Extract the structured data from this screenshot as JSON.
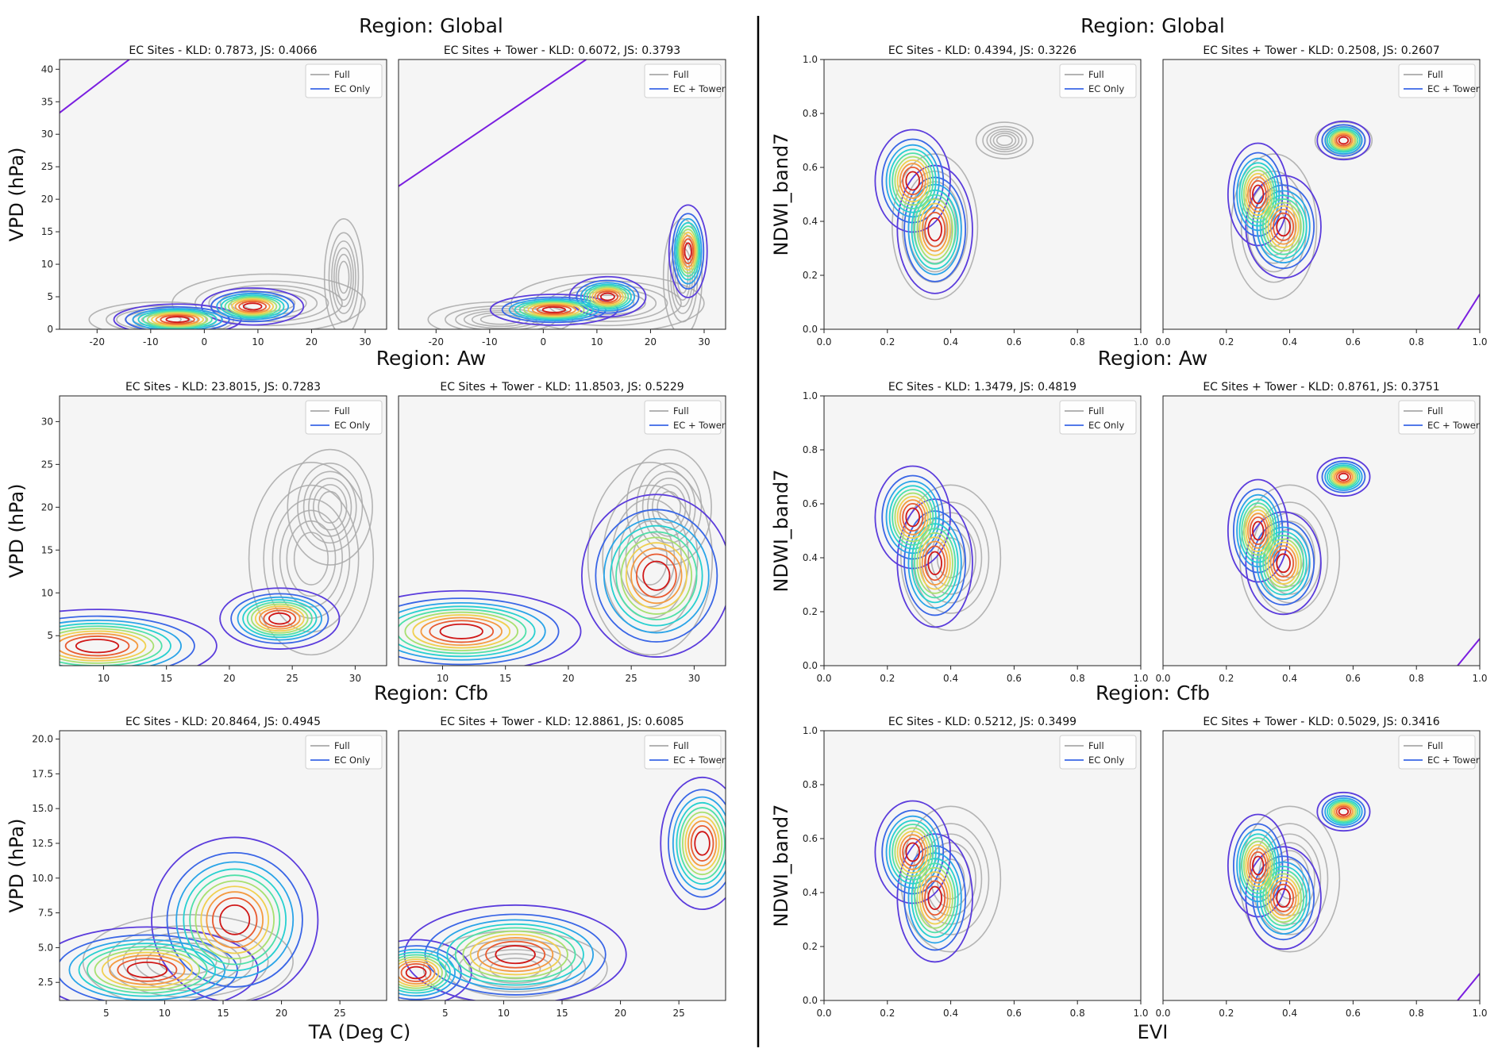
{
  "figure": {
    "left_title": "Region: Global",
    "right_title": "Region: Global"
  },
  "chart_data": [
    {
      "group": "TA-VPD",
      "type": "contour",
      "region_title": "Region: Global",
      "ylabel": "VPD (hPa)",
      "xlabel": "",
      "panels": [
        {
          "title": "EC Sites - KLD: 0.7873, JS: 0.4066",
          "legend": [
            "Full",
            "EC Only"
          ],
          "xlim": [
            -27,
            34
          ],
          "ylim": [
            0,
            41.5
          ],
          "xticks": [
            -20,
            -10,
            0,
            10,
            20,
            30
          ],
          "yticks": [
            0,
            5,
            10,
            15,
            20,
            25,
            30,
            35,
            40
          ],
          "full_peaks": [
            {
              "x": -8,
              "y": 1.5,
              "sx": 6,
              "sy": 1.2
            },
            {
              "x": 26,
              "y": 8,
              "sx": 1.6,
              "sy": 4
            },
            {
              "x": 12,
              "y": 4,
              "sx": 8,
              "sy": 2
            }
          ],
          "sub_peaks": [
            {
              "x": 9,
              "y": 3.5,
              "sx": 4,
              "sy": 1.2
            },
            {
              "x": -5,
              "y": 1.5,
              "sx": 5,
              "sy": 1
            }
          ],
          "diag_line": [
            [
              -27,
              33.3
            ],
            [
              -14,
              41.5
            ]
          ]
        },
        {
          "title": "EC Sites + Tower - KLD: 0.6072, JS: 0.3793",
          "legend": [
            "Full",
            "EC + Tower"
          ],
          "xlim": [
            -27,
            34
          ],
          "ylim": [
            0,
            41.5
          ],
          "xticks": [
            -20,
            -10,
            0,
            10,
            20,
            30
          ],
          "yticks": [],
          "full_peaks": [
            {
              "x": -8,
              "y": 1.5,
              "sx": 6,
              "sy": 1.2
            },
            {
              "x": 26,
              "y": 8,
              "sx": 1.6,
              "sy": 4
            },
            {
              "x": 12,
              "y": 4,
              "sx": 8,
              "sy": 2
            }
          ],
          "sub_peaks": [
            {
              "x": 2,
              "y": 3,
              "sx": 5,
              "sy": 1
            },
            {
              "x": 27,
              "y": 12,
              "sx": 1.5,
              "sy": 3
            },
            {
              "x": 12,
              "y": 5,
              "sx": 3,
              "sy": 1.3
            }
          ],
          "diag_line": [
            [
              -27,
              22
            ],
            [
              8,
              41.5
            ]
          ]
        }
      ]
    },
    {
      "group": "TA-VPD",
      "type": "contour",
      "region_title": "Region: Aw",
      "ylabel": "VPD (hPa)",
      "xlabel": "",
      "panels": [
        {
          "title": "EC Sites - KLD: 23.8015, JS: 0.7283",
          "legend": [
            "Full",
            "EC Only"
          ],
          "xlim": [
            6.5,
            32.5
          ],
          "ylim": [
            1.5,
            33
          ],
          "xticks": [
            10,
            15,
            20,
            25,
            30
          ],
          "yticks": [
            5,
            10,
            15,
            20,
            25,
            30
          ],
          "full_peaks": [
            {
              "x": 26.5,
              "y": 14,
              "sx": 2.2,
              "sy": 5
            },
            {
              "x": 28,
              "y": 20,
              "sx": 1.5,
              "sy": 3
            }
          ],
          "sub_peaks": [
            {
              "x": 9.5,
              "y": 3.8,
              "sx": 4,
              "sy": 1.8
            },
            {
              "x": 24,
              "y": 7,
              "sx": 2,
              "sy": 1.5
            }
          ],
          "diag_line": []
        },
        {
          "title": "EC Sites + Tower - KLD: 11.8503, JS: 0.5229",
          "legend": [
            "Full",
            "EC + Tower"
          ],
          "xlim": [
            6.5,
            32.5
          ],
          "ylim": [
            1.5,
            33
          ],
          "xticks": [
            10,
            15,
            20,
            25,
            30
          ],
          "yticks": [],
          "full_peaks": [
            {
              "x": 26.5,
              "y": 14,
              "sx": 2.2,
              "sy": 5
            },
            {
              "x": 28,
              "y": 20,
              "sx": 1.5,
              "sy": 3
            }
          ],
          "sub_peaks": [
            {
              "x": 11.5,
              "y": 5.5,
              "sx": 4,
              "sy": 2
            },
            {
              "x": 27,
              "y": 12,
              "sx": 2.5,
              "sy": 4
            }
          ],
          "diag_line": []
        }
      ]
    },
    {
      "group": "TA-VPD",
      "type": "contour",
      "region_title": "Region: Cfb",
      "ylabel": "VPD (hPa)",
      "xlabel": "TA (Deg C)",
      "panels": [
        {
          "title": "EC Sites - KLD: 20.8464, JS: 0.4945",
          "legend": [
            "Full",
            "EC Only"
          ],
          "xlim": [
            1,
            29
          ],
          "ylim": [
            1.2,
            20.6
          ],
          "xticks": [
            5,
            10,
            15,
            20,
            25
          ],
          "yticks": [
            2.5,
            5.0,
            7.5,
            10.0,
            12.5,
            15.0,
            17.5,
            20.0
          ],
          "full_peaks": [
            {
              "x": 12,
              "y": 4,
              "sx": 4,
              "sy": 1.5
            }
          ],
          "sub_peaks": [
            {
              "x": 8.5,
              "y": 3.4,
              "sx": 4,
              "sy": 1.3
            },
            {
              "x": 16,
              "y": 7,
              "sx": 3,
              "sy": 2.5
            }
          ],
          "diag_line": []
        },
        {
          "title": "EC Sites + Tower - KLD: 12.8861, JS: 0.6085",
          "legend": [
            "Full",
            "EC + Tower"
          ],
          "xlim": [
            1,
            29
          ],
          "ylim": [
            1.2,
            20.6
          ],
          "xticks": [
            5,
            10,
            15,
            20,
            25
          ],
          "yticks": [],
          "full_peaks": [
            {
              "x": 11,
              "y": 3.5,
              "sx": 3.5,
              "sy": 1.2
            }
          ],
          "sub_peaks": [
            {
              "x": 2.5,
              "y": 3.2,
              "sx": 2,
              "sy": 1
            },
            {
              "x": 11,
              "y": 4.5,
              "sx": 4,
              "sy": 1.5
            },
            {
              "x": 27,
              "y": 12.5,
              "sx": 1.5,
              "sy": 2
            }
          ],
          "diag_line": []
        }
      ]
    },
    {
      "group": "EVI-NDWI",
      "type": "contour",
      "region_title": "Region: Global",
      "ylabel": "NDWI_band7",
      "xlabel": "",
      "panels": [
        {
          "title": "EC Sites - KLD: 0.4394, JS: 0.3226",
          "legend": [
            "Full",
            "EC Only"
          ],
          "xlim": [
            0,
            1
          ],
          "ylim": [
            0,
            1
          ],
          "xticks": [
            0.0,
            0.2,
            0.4,
            0.6,
            0.8,
            1.0
          ],
          "yticks": [
            0.0,
            0.2,
            0.4,
            0.6,
            0.8,
            1.0
          ],
          "full_peaks": [
            {
              "x": 0.35,
              "y": 0.38,
              "sx": 0.06,
              "sy": 0.12
            },
            {
              "x": 0.57,
              "y": 0.7,
              "sx": 0.04,
              "sy": 0.03
            }
          ],
          "sub_peaks": [
            {
              "x": 0.35,
              "y": 0.37,
              "sx": 0.05,
              "sy": 0.1
            },
            {
              "x": 0.28,
              "y": 0.55,
              "sx": 0.05,
              "sy": 0.08
            }
          ],
          "diag_line": []
        },
        {
          "title": "EC Sites + Tower - KLD: 0.2508, JS: 0.2607",
          "legend": [
            "Full",
            "EC + Tower"
          ],
          "xlim": [
            0,
            1
          ],
          "ylim": [
            0,
            1
          ],
          "xticks": [
            0.0,
            0.2,
            0.4,
            0.6,
            0.8,
            1.0
          ],
          "yticks": [],
          "full_peaks": [
            {
              "x": 0.35,
              "y": 0.38,
              "sx": 0.06,
              "sy": 0.12
            },
            {
              "x": 0.57,
              "y": 0.7,
              "sx": 0.04,
              "sy": 0.03
            }
          ],
          "sub_peaks": [
            {
              "x": 0.57,
              "y": 0.7,
              "sx": 0.035,
              "sy": 0.03
            },
            {
              "x": 0.3,
              "y": 0.5,
              "sx": 0.04,
              "sy": 0.08
            },
            {
              "x": 0.38,
              "y": 0.38,
              "sx": 0.05,
              "sy": 0.08
            }
          ],
          "diag_line": [
            [
              0.93,
              0.0
            ],
            [
              1.0,
              0.13
            ]
          ]
        }
      ]
    },
    {
      "group": "EVI-NDWI",
      "type": "contour",
      "region_title": "Region: Aw",
      "ylabel": "NDWI_band7",
      "xlabel": "",
      "panels": [
        {
          "title": "EC Sites - KLD: 1.3479, JS: 0.4819",
          "legend": [
            "Full",
            "EC Only"
          ],
          "xlim": [
            0,
            1
          ],
          "ylim": [
            0,
            1
          ],
          "xticks": [
            0.0,
            0.2,
            0.4,
            0.6,
            0.8,
            1.0
          ],
          "yticks": [
            0.0,
            0.2,
            0.4,
            0.6,
            0.8,
            1.0
          ],
          "full_peaks": [
            {
              "x": 0.4,
              "y": 0.4,
              "sx": 0.07,
              "sy": 0.12
            }
          ],
          "sub_peaks": [
            {
              "x": 0.35,
              "y": 0.38,
              "sx": 0.05,
              "sy": 0.1
            },
            {
              "x": 0.28,
              "y": 0.55,
              "sx": 0.05,
              "sy": 0.08
            }
          ],
          "diag_line": []
        },
        {
          "title": "EC Sites + Tower - KLD: 0.8761, JS: 0.3751",
          "legend": [
            "Full",
            "EC + Tower"
          ],
          "xlim": [
            0,
            1
          ],
          "ylim": [
            0,
            1
          ],
          "xticks": [
            0.0,
            0.2,
            0.4,
            0.6,
            0.8,
            1.0
          ],
          "yticks": [],
          "full_peaks": [
            {
              "x": 0.4,
              "y": 0.4,
              "sx": 0.07,
              "sy": 0.12
            }
          ],
          "sub_peaks": [
            {
              "x": 0.57,
              "y": 0.7,
              "sx": 0.035,
              "sy": 0.03
            },
            {
              "x": 0.3,
              "y": 0.5,
              "sx": 0.04,
              "sy": 0.08
            },
            {
              "x": 0.38,
              "y": 0.38,
              "sx": 0.05,
              "sy": 0.08
            }
          ],
          "diag_line": [
            [
              0.93,
              0.0
            ],
            [
              1.0,
              0.1
            ]
          ]
        }
      ]
    },
    {
      "group": "EVI-NDWI",
      "type": "contour",
      "region_title": "Region: Cfb",
      "ylabel": "NDWI_band7",
      "xlabel": "EVI",
      "panels": [
        {
          "title": "EC Sites - KLD: 0.5212, JS: 0.3499",
          "legend": [
            "Full",
            "EC Only"
          ],
          "xlim": [
            0,
            1
          ],
          "ylim": [
            0,
            1
          ],
          "xticks": [
            0.0,
            0.2,
            0.4,
            0.6,
            0.8,
            1.0
          ],
          "yticks": [
            0.0,
            0.2,
            0.4,
            0.6,
            0.8,
            1.0
          ],
          "full_peaks": [
            {
              "x": 0.4,
              "y": 0.45,
              "sx": 0.07,
              "sy": 0.12
            }
          ],
          "sub_peaks": [
            {
              "x": 0.35,
              "y": 0.38,
              "sx": 0.05,
              "sy": 0.1
            },
            {
              "x": 0.28,
              "y": 0.55,
              "sx": 0.05,
              "sy": 0.08
            }
          ],
          "diag_line": []
        },
        {
          "title": "EC Sites + Tower - KLD: 0.5029, JS: 0.3416",
          "legend": [
            "Full",
            "EC + Tower"
          ],
          "xlim": [
            0,
            1
          ],
          "ylim": [
            0,
            1
          ],
          "xticks": [
            0.0,
            0.2,
            0.4,
            0.6,
            0.8,
            1.0
          ],
          "yticks": [],
          "full_peaks": [
            {
              "x": 0.4,
              "y": 0.45,
              "sx": 0.07,
              "sy": 0.12
            }
          ],
          "sub_peaks": [
            {
              "x": 0.57,
              "y": 0.7,
              "sx": 0.035,
              "sy": 0.03
            },
            {
              "x": 0.3,
              "y": 0.5,
              "sx": 0.04,
              "sy": 0.08
            },
            {
              "x": 0.38,
              "y": 0.38,
              "sx": 0.05,
              "sy": 0.08
            }
          ],
          "diag_line": [
            [
              0.93,
              0.0
            ],
            [
              1.0,
              0.1
            ]
          ]
        }
      ]
    }
  ],
  "colors": {
    "background": "#ffffff",
    "panel_face": "#f5f5f5",
    "full_contour": "#a8a8a8",
    "diag_line": "#7a1ee0",
    "divider": "#000000",
    "sub_palette": [
      "#5b3cdc",
      "#3a66e6",
      "#2aa4e8",
      "#27d0d0",
      "#4fe0a8",
      "#a8e070",
      "#f0d050",
      "#f49a40",
      "#e85a30",
      "#d01818"
    ]
  }
}
